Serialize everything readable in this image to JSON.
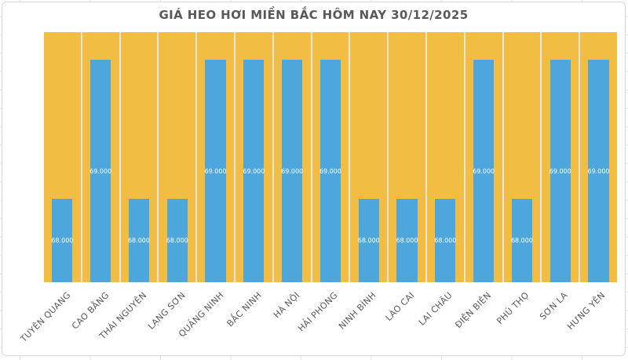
{
  "chart_data": {
    "type": "bar",
    "title": "GIÁ HEO HƠI MIỀN BẮC HÔM NAY 30/12/2025",
    "categories": [
      "TUYÊN QUANG",
      "CAO BẰNG",
      "THÁI NGUYÊN",
      "LẠNG SƠN",
      "QUẢNG NINH",
      "BẮC NINH",
      "HÀ NỘI",
      "HẢI PHÒNG",
      "NINH BÌNH",
      "LÀO CAI",
      "LAI CHÂU",
      "ĐIỆN BIÊN",
      "PHÚ THỌ",
      "SƠN LA",
      "HƯNG YÊN"
    ],
    "values": [
      68000,
      69000,
      68000,
      68000,
      69000,
      69000,
      69000,
      69000,
      68000,
      68000,
      68000,
      69000,
      68000,
      69000,
      69000
    ],
    "value_labels": [
      "68.000",
      "69.000",
      "68.000",
      "68.000",
      "69.000",
      "69.000",
      "69.000",
      "69.000",
      "68.000",
      "68.000",
      "68.000",
      "69.000",
      "68.000",
      "69.000",
      "69.000"
    ],
    "xlabel": "",
    "ylabel": "",
    "ylim": [
      67400,
      69200
    ],
    "grid": false,
    "legend": false,
    "data_label_position": "inside-center",
    "colors": {
      "bar": "#4da7dc",
      "plot_background": "#f1bd43",
      "panel_separator": "#ece6d8",
      "data_label": "#ffffff",
      "title_text": "#595959",
      "axis_label_text": "#595959",
      "chart_border": "#d7d7d7",
      "sheet_gridline": "#e3e3e3"
    }
  }
}
